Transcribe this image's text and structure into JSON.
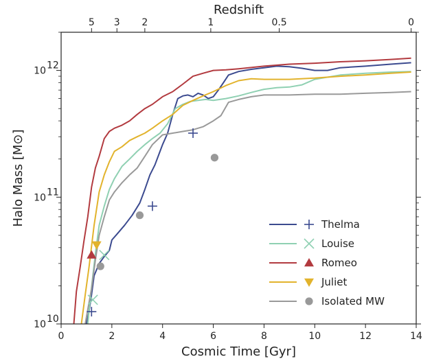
{
  "chart_data": {
    "type": "line",
    "xlabel": "Cosmic Time [Gyr]",
    "ylabel": "Halo Mass [M⊙]",
    "top_axis_label": "Redshift",
    "xlim": [
      0,
      14
    ],
    "ylim": [
      10000000000,
      2000000000000
    ],
    "yscale": "log",
    "grid": false,
    "legend_position": "lower-right",
    "x_ticks": [
      0,
      2,
      4,
      6,
      8,
      10,
      12,
      14
    ],
    "y_ticks": [
      {
        "value": 10000000000,
        "base": "10",
        "exp": "10"
      },
      {
        "value": 100000000000,
        "base": "10",
        "exp": "11"
      },
      {
        "value": 1000000000000,
        "base": "10",
        "exp": "12"
      }
    ],
    "top_ticks": [
      {
        "label": "5",
        "t": 1.2
      },
      {
        "label": "3",
        "t": 2.2
      },
      {
        "label": "2",
        "t": 3.3
      },
      {
        "label": "1",
        "t": 5.9
      },
      {
        "label": "0.5",
        "t": 8.6
      },
      {
        "label": "0",
        "t": 13.8
      }
    ],
    "series": [
      {
        "name": "Thelma",
        "color": "#3b4a8f",
        "marker": "plus",
        "marker_point": [
          1.2,
          12500000000
        ],
        "marker_point2": [
          5.2,
          320000000000
        ],
        "marker_point3": [
          3.6,
          85000000000
        ],
        "x": [
          1.0,
          1.1,
          1.2,
          1.3,
          1.5,
          1.7,
          1.9,
          2.0,
          2.2,
          2.5,
          2.8,
          3.1,
          3.3,
          3.5,
          3.7,
          3.9,
          4.0,
          4.2,
          4.4,
          4.6,
          4.8,
          5.0,
          5.2,
          5.4,
          5.6,
          5.8,
          6.0,
          6.2,
          6.4,
          6.6,
          7.0,
          7.5,
          8.0,
          8.5,
          9.0,
          9.5,
          10.0,
          10.5,
          11.0,
          12.0,
          13.0,
          13.8
        ],
        "y": [
          10000000000,
          12500000000,
          17000000000,
          24000000000,
          30000000000,
          34000000000,
          38000000000,
          46000000000,
          51000000000,
          60000000000,
          72000000000,
          90000000000,
          115000000000,
          150000000000,
          180000000000,
          230000000000,
          260000000000,
          320000000000,
          450000000000,
          600000000000,
          630000000000,
          640000000000,
          620000000000,
          660000000000,
          640000000000,
          600000000000,
          620000000000,
          700000000000,
          800000000000,
          920000000000,
          980000000000,
          1020000000000,
          1050000000000,
          1080000000000,
          1070000000000,
          1040000000000,
          1000000000000,
          1000000000000,
          1050000000000,
          1080000000000,
          1120000000000,
          1150000000000
        ]
      },
      {
        "name": "Louise",
        "color": "#8fd0b2",
        "marker": "x",
        "marker_point": [
          1.25,
          15500000000
        ],
        "marker_point2": [
          1.7,
          35000000000
        ],
        "x": [
          1.05,
          1.15,
          1.25,
          1.35,
          1.5,
          1.7,
          1.9,
          2.1,
          2.4,
          2.7,
          3.0,
          3.3,
          3.6,
          3.9,
          4.2,
          4.5,
          4.8,
          5.1,
          5.4,
          5.7,
          6.0,
          6.5,
          7.0,
          7.5,
          8.0,
          8.5,
          9.0,
          9.5,
          10.0,
          11.0,
          12.0,
          13.0,
          13.8
        ],
        "y": [
          10000000000,
          16000000000,
          24000000000,
          36000000000,
          60000000000,
          85000000000,
          115000000000,
          140000000000,
          175000000000,
          200000000000,
          230000000000,
          260000000000,
          290000000000,
          320000000000,
          380000000000,
          500000000000,
          540000000000,
          570000000000,
          580000000000,
          590000000000,
          580000000000,
          600000000000,
          630000000000,
          670000000000,
          710000000000,
          730000000000,
          740000000000,
          770000000000,
          850000000000,
          920000000000,
          950000000000,
          970000000000,
          980000000000
        ]
      },
      {
        "name": "Romeo",
        "color": "#b23a3f",
        "marker": "triangle-up",
        "marker_point": [
          1.2,
          35000000000
        ],
        "x": [
          0.5,
          0.6,
          0.75,
          0.9,
          1.05,
          1.2,
          1.35,
          1.5,
          1.7,
          1.9,
          2.1,
          2.4,
          2.7,
          3.0,
          3.3,
          3.6,
          4.0,
          4.4,
          4.8,
          5.2,
          5.6,
          6.0,
          6.5,
          7.0,
          8.0,
          9.0,
          10.0,
          11.0,
          12.0,
          13.0,
          13.8
        ],
        "y": [
          10000000000,
          18000000000,
          28000000000,
          45000000000,
          70000000000,
          120000000000,
          170000000000,
          210000000000,
          290000000000,
          330000000000,
          350000000000,
          370000000000,
          400000000000,
          450000000000,
          500000000000,
          540000000000,
          620000000000,
          680000000000,
          780000000000,
          900000000000,
          950000000000,
          1000000000000,
          1010000000000,
          1030000000000,
          1080000000000,
          1120000000000,
          1140000000000,
          1170000000000,
          1190000000000,
          1220000000000,
          1250000000000
        ]
      },
      {
        "name": "Juliet",
        "color": "#e2b32c",
        "marker": "triangle-down",
        "marker_point": [
          1.4,
          42000000000
        ],
        "x": [
          0.8,
          0.95,
          1.1,
          1.3,
          1.5,
          1.7,
          1.9,
          2.1,
          2.4,
          2.7,
          3.0,
          3.3,
          3.6,
          4.0,
          4.4,
          4.8,
          5.2,
          5.6,
          6.0,
          6.5,
          7.0,
          7.5,
          8.0,
          9.0,
          10.0,
          11.0,
          12.0,
          13.0,
          13.8
        ],
        "y": [
          10000000000,
          17000000000,
          28000000000,
          60000000000,
          110000000000,
          150000000000,
          190000000000,
          230000000000,
          250000000000,
          280000000000,
          300000000000,
          320000000000,
          350000000000,
          400000000000,
          450000000000,
          530000000000,
          580000000000,
          630000000000,
          680000000000,
          760000000000,
          830000000000,
          860000000000,
          850000000000,
          850000000000,
          870000000000,
          900000000000,
          920000000000,
          950000000000,
          970000000000
        ]
      },
      {
        "name": "Isolated MW",
        "color": "#999999",
        "marker": "circle",
        "marker_point": [
          1.55,
          28500000000
        ],
        "marker_point2": [
          3.1,
          72000000000
        ],
        "marker_point3": [
          6.05,
          205000000000
        ],
        "x": [
          0.95,
          1.05,
          1.2,
          1.35,
          1.5,
          1.7,
          1.9,
          2.1,
          2.4,
          2.7,
          3.0,
          3.3,
          3.6,
          4.0,
          4.4,
          4.8,
          5.2,
          5.6,
          6.0,
          6.3,
          6.6,
          7.0,
          7.5,
          8.0,
          9.0,
          10.0,
          11.0,
          12.0,
          13.0,
          13.8
        ],
        "y": [
          10000000000,
          13000000000,
          19000000000,
          32000000000,
          50000000000,
          70000000000,
          95000000000,
          110000000000,
          130000000000,
          150000000000,
          170000000000,
          210000000000,
          260000000000,
          310000000000,
          320000000000,
          330000000000,
          340000000000,
          360000000000,
          400000000000,
          440000000000,
          560000000000,
          590000000000,
          620000000000,
          640000000000,
          640000000000,
          650000000000,
          650000000000,
          660000000000,
          670000000000,
          680000000000
        ]
      }
    ]
  }
}
